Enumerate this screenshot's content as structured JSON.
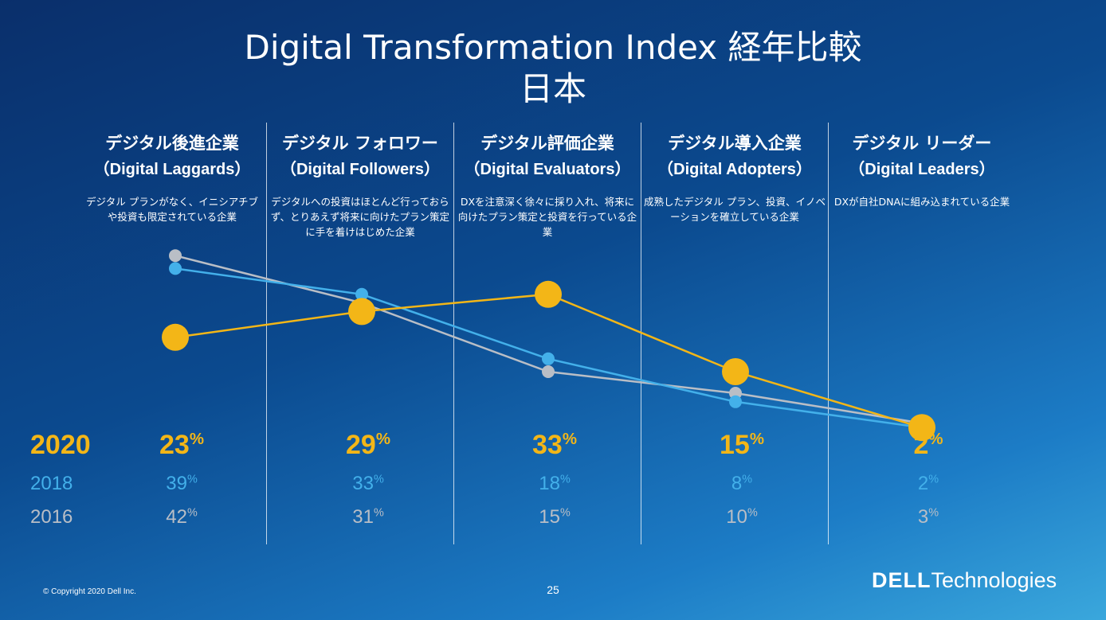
{
  "title": {
    "line1": "Digital Transformation Index 経年比較",
    "line2": "日本"
  },
  "categories": [
    {
      "jp": "デジタル後進企業",
      "en": "（Digital Laggards）",
      "desc": "デジタル プランがなく、イニシアチブや投資も限定されている企業"
    },
    {
      "jp": "デジタル フォロワー",
      "en": "（Digital Followers）",
      "desc": "デジタルへの投資はほとんど行っておらず、とりあえず将来に向けたプラン策定に手を着けはじめた企業"
    },
    {
      "jp": "デジタル評価企業",
      "en": "（Digital Evaluators）",
      "desc": "DXを注意深く徐々に採り入れ、将来に向けたプラン策定と投資を行っている企業"
    },
    {
      "jp": "デジタル導入企業",
      "en": "（Digital Adopters）",
      "desc": "成熟したデジタル プラン、投資、イノベーションを確立している企業"
    },
    {
      "jp": "デジタル リーダー",
      "en": "（Digital Leaders）",
      "desc": "DXが自社DNAに組み込まれている企業"
    }
  ],
  "year_labels": {
    "y2020": "2020",
    "y2018": "2018",
    "y2016": "2016"
  },
  "percent_sign": "%",
  "chart_data": {
    "type": "line",
    "categories": [
      "Digital Laggards",
      "Digital Followers",
      "Digital Evaluators",
      "Digital Adopters",
      "Digital Leaders"
    ],
    "series": [
      {
        "name": "2020",
        "values": [
          23,
          29,
          33,
          15,
          2
        ],
        "color": "#f3b617"
      },
      {
        "name": "2018",
        "values": [
          39,
          33,
          18,
          8,
          2
        ],
        "color": "#43b0ea"
      },
      {
        "name": "2016",
        "values": [
          42,
          31,
          15,
          10,
          3
        ],
        "color": "#b9bec6"
      }
    ],
    "ylim": [
      0,
      50
    ]
  },
  "footer": {
    "copyright": "© Copyright 2020 Dell Inc.",
    "page": "25",
    "logo_dell": "DELL",
    "logo_tech": "Technologies"
  }
}
